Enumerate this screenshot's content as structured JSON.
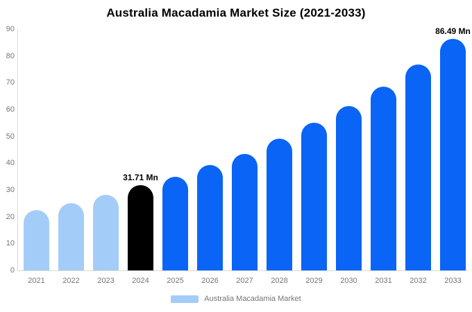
{
  "chart_data": {
    "type": "bar",
    "title": "Australia Macadamia Market Size (2021-2033)",
    "categories": [
      "2021",
      "2022",
      "2023",
      "2024",
      "2025",
      "2026",
      "2027",
      "2028",
      "2029",
      "2030",
      "2031",
      "2032",
      "2033"
    ],
    "values": [
      22.5,
      25.0,
      28.2,
      31.71,
      35.0,
      39.2,
      43.5,
      49.2,
      55.1,
      61.2,
      68.6,
      76.9,
      86.49
    ],
    "segments": [
      "past",
      "past",
      "past",
      "current",
      "forecast",
      "forecast",
      "forecast",
      "forecast",
      "forecast",
      "forecast",
      "forecast",
      "forecast",
      "forecast"
    ],
    "segment_colors": {
      "past": "#a3cdf8",
      "current": "#000000",
      "forecast": "#0a64f5"
    },
    "annotations": [
      {
        "index": 3,
        "text": "31.71 Mn"
      },
      {
        "index": 12,
        "text": "86.49 Mn"
      }
    ],
    "y_ticks": [
      0,
      10,
      20,
      30,
      40,
      50,
      60,
      70,
      80,
      90
    ],
    "ylim": [
      0,
      90
    ],
    "xlabel": "",
    "ylabel": "",
    "grid": false,
    "legend": {
      "position": "bottom-center",
      "items": [
        {
          "label": "Australia Macadamia Market",
          "color": "#a3cdf8"
        }
      ]
    },
    "axis_line_color": "#d9d9d9",
    "tick_label_color": "#757575"
  }
}
